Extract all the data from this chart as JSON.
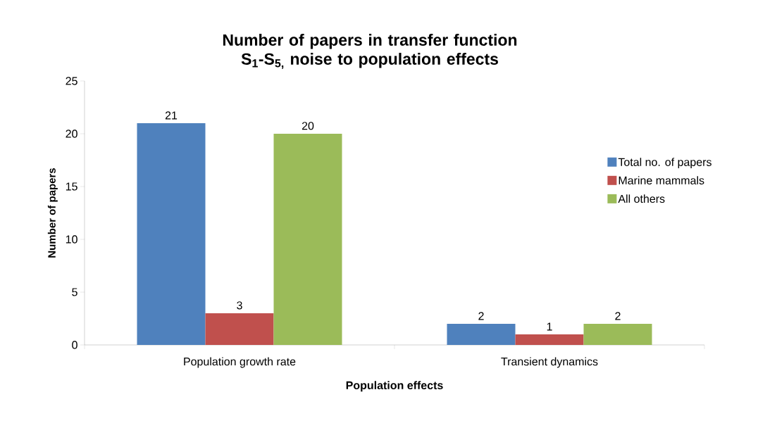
{
  "chart_data": {
    "type": "bar",
    "title": "Number of papers in transfer function S$_{1}$-S$_{5,}$ noise to population effects",
    "xlabel": "Population effects",
    "ylabel": "Number of papers",
    "categories": [
      "Population growth rate",
      "Transient dynamics"
    ],
    "series": [
      {
        "name": "Total no. of papers",
        "color": "#4f81bd",
        "values": [
          21,
          2
        ]
      },
      {
        "name": "Marine mammals",
        "color": "#c0504d",
        "values": [
          3,
          1
        ]
      },
      {
        "name": "All others",
        "color": "#9bbb59",
        "values": [
          20,
          2
        ]
      }
    ],
    "ylim": [
      0,
      25
    ],
    "yticks": [
      0,
      5,
      10,
      15,
      20,
      25
    ],
    "grid": false,
    "legend": "right",
    "data_labels": true
  }
}
